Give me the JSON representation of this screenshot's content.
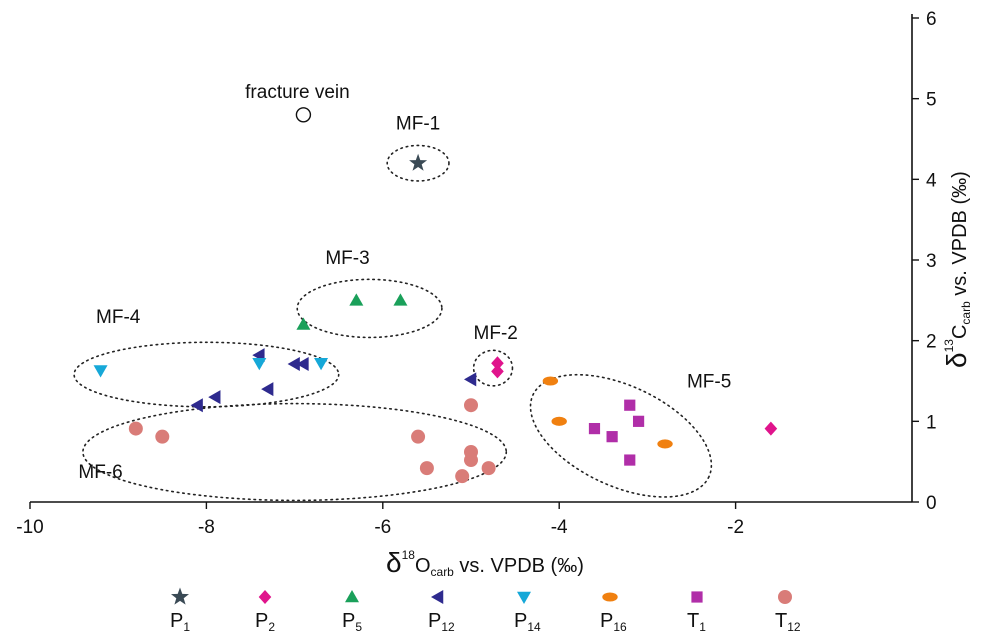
{
  "chart_data": {
    "type": "scatter",
    "xlim": [
      -10,
      0
    ],
    "ylim": [
      0,
      6
    ],
    "xticks": [
      -10,
      -8,
      -6,
      -4,
      -2
    ],
    "xtick_labels": [
      "-10",
      "-8",
      "-6",
      "-4",
      "-2"
    ],
    "yticks": [
      0,
      1,
      2,
      3,
      4,
      5,
      6
    ],
    "ytick_labels": [
      "0",
      "1",
      "2",
      "3",
      "4",
      "5",
      "6"
    ],
    "grid": false,
    "legend_position": "bottom",
    "xlabel": {
      "delta": "δ",
      "sup": "18",
      "main": "O",
      "sub": "carb",
      "rest": " vs. VPDB (‰)"
    },
    "ylabel": {
      "delta": "δ",
      "sup": "13",
      "main": "C",
      "sub": "carb",
      "rest": " vs. VPDB (‰)"
    },
    "series": [
      {
        "name": "P",
        "sub": "1",
        "marker": "star",
        "color": "#3a4a55",
        "points": [
          [
            -5.6,
            4.2
          ]
        ]
      },
      {
        "name": "P",
        "sub": "2",
        "marker": "diamond",
        "color": "#e0148c",
        "points": [
          [
            -4.7,
            1.72
          ],
          [
            -4.7,
            1.62
          ],
          [
            -1.6,
            0.91
          ]
        ]
      },
      {
        "name": "P",
        "sub": "5",
        "marker": "triangle-up",
        "color": "#1aa05a",
        "points": [
          [
            -6.3,
            2.5
          ],
          [
            -5.8,
            2.5
          ],
          [
            -6.9,
            2.2
          ]
        ]
      },
      {
        "name": "P",
        "sub": "12",
        "marker": "triangle-left",
        "color": "#2e2a8e",
        "points": [
          [
            -7.4,
            1.82
          ],
          [
            -7.0,
            1.71
          ],
          [
            -6.9,
            1.71
          ],
          [
            -7.3,
            1.4
          ],
          [
            -7.9,
            1.3
          ],
          [
            -8.1,
            1.2
          ],
          [
            -5.0,
            1.52
          ]
        ]
      },
      {
        "name": "P",
        "sub": "14",
        "marker": "triangle-down",
        "color": "#16a8d8",
        "points": [
          [
            -9.2,
            1.63
          ],
          [
            -7.4,
            1.72
          ],
          [
            -6.7,
            1.72
          ]
        ]
      },
      {
        "name": "P",
        "sub": "16",
        "marker": "ellipse",
        "color": "#f08010",
        "points": [
          [
            -4.1,
            1.5
          ],
          [
            -4.0,
            1.0
          ],
          [
            -2.8,
            0.72
          ]
        ]
      },
      {
        "name": "T",
        "sub": "1",
        "marker": "square",
        "color": "#b02ea8",
        "points": [
          [
            -3.6,
            0.91
          ],
          [
            -3.4,
            0.81
          ],
          [
            -3.2,
            1.2
          ],
          [
            -3.1,
            1.0
          ],
          [
            -3.2,
            0.52
          ]
        ]
      },
      {
        "name": "T",
        "sub": "12",
        "marker": "circle",
        "color": "#d97c78",
        "points": [
          [
            -8.8,
            0.91
          ],
          [
            -8.5,
            0.81
          ],
          [
            -5.6,
            0.81
          ],
          [
            -5.5,
            0.42
          ],
          [
            -5.1,
            0.32
          ],
          [
            -5.0,
            0.62
          ],
          [
            -5.0,
            0.52
          ],
          [
            -4.8,
            0.42
          ],
          [
            -5.0,
            1.2
          ]
        ]
      }
    ],
    "open_points": [
      {
        "label": "fracture vein",
        "point": [
          -6.9,
          4.8
        ]
      }
    ],
    "groups": [
      {
        "label": "MF-1",
        "ellipse": {
          "cx": -5.6,
          "cy": 4.2,
          "rx": 0.35,
          "ry": 0.22
        },
        "label_at": [
          -5.6,
          4.62
        ]
      },
      {
        "label": "MF-2",
        "ellipse": {
          "cx": -4.75,
          "cy": 1.66,
          "rx": 0.22,
          "ry": 0.22
        },
        "label_at": [
          -4.72,
          2.02
        ]
      },
      {
        "label": "MF-3",
        "ellipse": {
          "cx": -6.15,
          "cy": 2.4,
          "rx": 0.82,
          "ry": 0.36
        },
        "label_at": [
          -6.4,
          2.95
        ]
      },
      {
        "label": "MF-4",
        "ellipse": {
          "cx": -8.0,
          "cy": 1.58,
          "rx": 1.5,
          "ry": 0.4
        },
        "label_at": [
          -9.0,
          2.22
        ]
      },
      {
        "label": "MF-5",
        "ellipse": {
          "cx": -3.3,
          "cy": 0.82,
          "rx": 1.1,
          "ry": 0.62,
          "rot": 25
        },
        "label_at": [
          -2.3,
          1.42
        ]
      },
      {
        "label": "MF-6",
        "ellipse": {
          "cx": -7.0,
          "cy": 0.62,
          "rx": 2.4,
          "ry": 0.6
        },
        "label_at": [
          -9.2,
          0.3
        ]
      }
    ]
  }
}
